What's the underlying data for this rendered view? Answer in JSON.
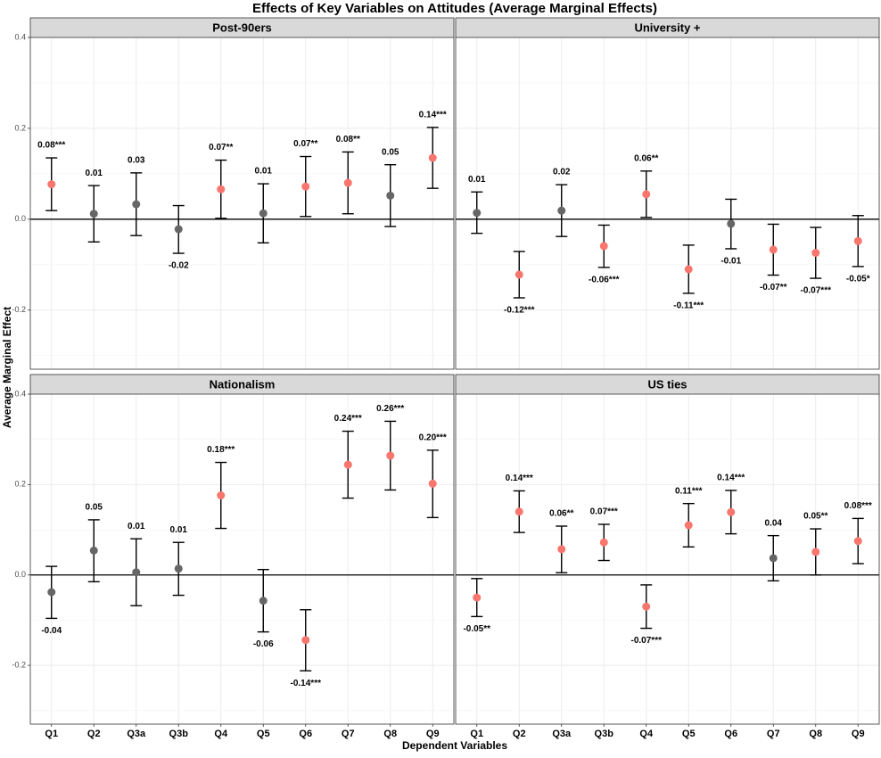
{
  "chart_data": {
    "type": "scatter",
    "subtype": "point-range (faceted)",
    "title": "Effects of Key Variables on Attitudes (Average Marginal Effects)",
    "xlabel": "Dependent Variables",
    "ylabel": "Average Marginal Effect",
    "categories": [
      "Q1",
      "Q2",
      "Q3a",
      "Q3b",
      "Q4",
      "Q5",
      "Q6",
      "Q7",
      "Q8",
      "Q9"
    ],
    "ylim": [
      -0.33,
      0.4
    ],
    "yticks": [
      -0.2,
      0.0,
      0.2,
      0.4
    ],
    "ytick_labels": [
      "-0.2",
      "0.0",
      "0.2",
      "0.4"
    ],
    "grid": true,
    "colors": {
      "significant": "#F8766D",
      "not_significant": "#666666",
      "errorbar": "#000000",
      "strip": "#d9d9d9",
      "grid": "#ebebeb"
    },
    "panels": [
      {
        "name": "Post-90ers",
        "points": [
          {
            "x": "Q1",
            "y": 0.077,
            "lo": 0.019,
            "hi": 0.135,
            "sig": true,
            "label": "0.08***"
          },
          {
            "x": "Q2",
            "y": 0.012,
            "lo": -0.05,
            "hi": 0.074,
            "sig": false,
            "label": "0.01"
          },
          {
            "x": "Q3a",
            "y": 0.033,
            "lo": -0.036,
            "hi": 0.102,
            "sig": false,
            "label": "0.03"
          },
          {
            "x": "Q3b",
            "y": -0.022,
            "lo": -0.075,
            "hi": 0.03,
            "sig": false,
            "label": "-0.02"
          },
          {
            "x": "Q4",
            "y": 0.066,
            "lo": 0.002,
            "hi": 0.13,
            "sig": true,
            "label": "0.07**"
          },
          {
            "x": "Q5",
            "y": 0.013,
            "lo": -0.052,
            "hi": 0.078,
            "sig": false,
            "label": "0.01"
          },
          {
            "x": "Q6",
            "y": 0.072,
            "lo": 0.006,
            "hi": 0.138,
            "sig": true,
            "label": "0.07**"
          },
          {
            "x": "Q7",
            "y": 0.08,
            "lo": 0.012,
            "hi": 0.148,
            "sig": true,
            "label": "0.08**"
          },
          {
            "x": "Q8",
            "y": 0.052,
            "lo": -0.016,
            "hi": 0.12,
            "sig": false,
            "label": "0.05"
          },
          {
            "x": "Q9",
            "y": 0.135,
            "lo": 0.068,
            "hi": 0.202,
            "sig": true,
            "label": "0.14***"
          }
        ]
      },
      {
        "name": "University +",
        "points": [
          {
            "x": "Q1",
            "y": 0.014,
            "lo": -0.031,
            "hi": 0.06,
            "sig": false,
            "label": "0.01"
          },
          {
            "x": "Q2",
            "y": -0.122,
            "lo": -0.173,
            "hi": -0.071,
            "sig": true,
            "label": "-0.12***"
          },
          {
            "x": "Q3a",
            "y": 0.019,
            "lo": -0.038,
            "hi": 0.076,
            "sig": false,
            "label": "0.02"
          },
          {
            "x": "Q3b",
            "y": -0.059,
            "lo": -0.106,
            "hi": -0.013,
            "sig": true,
            "label": "-0.06***"
          },
          {
            "x": "Q4",
            "y": 0.055,
            "lo": 0.004,
            "hi": 0.106,
            "sig": true,
            "label": "0.06**"
          },
          {
            "x": "Q5",
            "y": -0.11,
            "lo": -0.163,
            "hi": -0.057,
            "sig": true,
            "label": "-0.11***"
          },
          {
            "x": "Q6",
            "y": -0.01,
            "lo": -0.065,
            "hi": 0.044,
            "sig": false,
            "label": "-0.01"
          },
          {
            "x": "Q7",
            "y": -0.067,
            "lo": -0.123,
            "hi": -0.011,
            "sig": true,
            "label": "-0.07**"
          },
          {
            "x": "Q8",
            "y": -0.074,
            "lo": -0.13,
            "hi": -0.018,
            "sig": true,
            "label": "-0.07***"
          },
          {
            "x": "Q9",
            "y": -0.048,
            "lo": -0.104,
            "hi": 0.008,
            "sig": true,
            "label": "-0.05*"
          }
        ]
      },
      {
        "name": "Nationalism",
        "points": [
          {
            "x": "Q1",
            "y": -0.038,
            "lo": -0.096,
            "hi": 0.019,
            "sig": false,
            "label": "-0.04"
          },
          {
            "x": "Q2",
            "y": 0.054,
            "lo": -0.015,
            "hi": 0.122,
            "sig": false,
            "label": "0.05"
          },
          {
            "x": "Q3a",
            "y": 0.006,
            "lo": -0.068,
            "hi": 0.08,
            "sig": false,
            "label": "0.01"
          },
          {
            "x": "Q3b",
            "y": 0.014,
            "lo": -0.045,
            "hi": 0.072,
            "sig": false,
            "label": "0.01"
          },
          {
            "x": "Q4",
            "y": 0.176,
            "lo": 0.103,
            "hi": 0.249,
            "sig": true,
            "label": "0.18***"
          },
          {
            "x": "Q5",
            "y": -0.057,
            "lo": -0.126,
            "hi": 0.012,
            "sig": false,
            "label": "-0.06"
          },
          {
            "x": "Q6",
            "y": -0.144,
            "lo": -0.212,
            "hi": -0.077,
            "sig": true,
            "label": "-0.14***"
          },
          {
            "x": "Q7",
            "y": 0.244,
            "lo": 0.17,
            "hi": 0.318,
            "sig": true,
            "label": "0.24***"
          },
          {
            "x": "Q8",
            "y": 0.264,
            "lo": 0.188,
            "hi": 0.34,
            "sig": true,
            "label": "0.26***"
          },
          {
            "x": "Q9",
            "y": 0.202,
            "lo": 0.127,
            "hi": 0.276,
            "sig": true,
            "label": "0.20***"
          }
        ]
      },
      {
        "name": "US ties",
        "points": [
          {
            "x": "Q1",
            "y": -0.05,
            "lo": -0.092,
            "hi": -0.008,
            "sig": true,
            "label": "-0.05**"
          },
          {
            "x": "Q2",
            "y": 0.14,
            "lo": 0.094,
            "hi": 0.186,
            "sig": true,
            "label": "0.14***"
          },
          {
            "x": "Q3a",
            "y": 0.057,
            "lo": 0.005,
            "hi": 0.108,
            "sig": true,
            "label": "0.06**"
          },
          {
            "x": "Q3b",
            "y": 0.072,
            "lo": 0.032,
            "hi": 0.112,
            "sig": true,
            "label": "0.07***"
          },
          {
            "x": "Q4",
            "y": -0.07,
            "lo": -0.118,
            "hi": -0.022,
            "sig": true,
            "label": "-0.07***"
          },
          {
            "x": "Q5",
            "y": 0.11,
            "lo": 0.062,
            "hi": 0.158,
            "sig": true,
            "label": "0.11***"
          },
          {
            "x": "Q6",
            "y": 0.139,
            "lo": 0.091,
            "hi": 0.187,
            "sig": true,
            "label": "0.14***"
          },
          {
            "x": "Q7",
            "y": 0.037,
            "lo": -0.013,
            "hi": 0.087,
            "sig": false,
            "label": "0.04"
          },
          {
            "x": "Q8",
            "y": 0.051,
            "lo": 0.0,
            "hi": 0.102,
            "sig": true,
            "label": "0.05**"
          },
          {
            "x": "Q9",
            "y": 0.075,
            "lo": 0.025,
            "hi": 0.125,
            "sig": true,
            "label": "0.08***"
          }
        ]
      }
    ]
  }
}
